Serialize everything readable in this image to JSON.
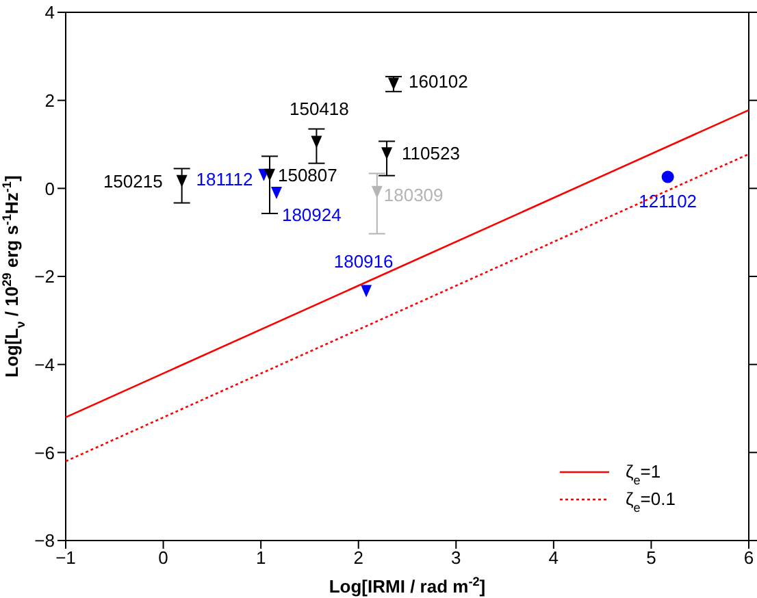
{
  "chart_data": {
    "type": "scatter",
    "xlabel": "Log[IRMI / rad m$^{-2}$]",
    "ylabel": "Log[L$_{ν}$ / 10$^{29}$ erg s$^{-1}$Hz$^{-1}$]",
    "xlim": [
      -1,
      6
    ],
    "xticks": [
      -1,
      0,
      1,
      2,
      3,
      4,
      5,
      6
    ],
    "ylim": [
      -8,
      4
    ],
    "yticks": [
      -8,
      -6,
      -4,
      -2,
      0,
      2,
      4
    ],
    "grid": false,
    "legend": "bottom right",
    "series": [
      {
        "name": "150215",
        "color": "#000000",
        "marker": "triangle",
        "x": [
          0.19
        ],
        "values": [
          0.15
        ],
        "errors": [
          [
            -0.33,
            0.45
          ]
        ]
      },
      {
        "name": "181112",
        "color": "#0000ff",
        "marker": "triangle",
        "x": [
          1.03
        ],
        "values": [
          0.29
        ]
      },
      {
        "name": "150807",
        "color": "#000000",
        "marker": "triangle",
        "x": [
          1.09
        ],
        "values": [
          0.29
        ],
        "errors": [
          [
            -0.57,
            0.73
          ]
        ]
      },
      {
        "name": "180924",
        "color": "#0000ff",
        "marker": "triangle",
        "x": [
          1.16
        ],
        "values": [
          -0.12
        ]
      },
      {
        "name": "150418",
        "color": "#000000",
        "marker": "triangle",
        "x": [
          1.57
        ],
        "values": [
          1.04
        ],
        "errors": [
          [
            0.57,
            1.35
          ]
        ]
      },
      {
        "name": "160102",
        "color": "#000000",
        "marker": "triangle",
        "x": [
          2.36
        ],
        "values": [
          2.36
        ],
        "errors": [
          [
            2.2,
            2.54
          ]
        ]
      },
      {
        "name": "110523",
        "color": "#000000",
        "marker": "triangle",
        "x": [
          2.29
        ],
        "values": [
          0.78
        ],
        "errors": [
          [
            0.29,
            1.07
          ]
        ]
      },
      {
        "name": "180309",
        "color": "#b4b4b4",
        "marker": "triangle",
        "x": [
          2.19
        ],
        "values": [
          -0.1
        ],
        "errors": [
          [
            -1.03,
            0.34
          ]
        ]
      },
      {
        "name": "180916",
        "color": "#0000ff",
        "marker": "triangle",
        "x": [
          2.08
        ],
        "values": [
          -2.35
        ]
      },
      {
        "name": "121102",
        "color": "#0000ff",
        "marker": "circle",
        "x": [
          5.17
        ],
        "values": [
          0.26
        ]
      },
      {
        "name": "ζ$_{e}$=1",
        "type": "line",
        "color": "#ff0000",
        "line_style": "solid",
        "marker": "none",
        "x": [
          -1,
          6
        ],
        "values": [
          -5.2,
          1.78
        ]
      },
      {
        "name": "ζ$_{e}$=0.1",
        "type": "line",
        "color": "#ff0000",
        "line_style": "dotted",
        "marker": "none",
        "x": [
          -1,
          6
        ],
        "values": [
          -6.2,
          0.78
        ]
      }
    ]
  }
}
